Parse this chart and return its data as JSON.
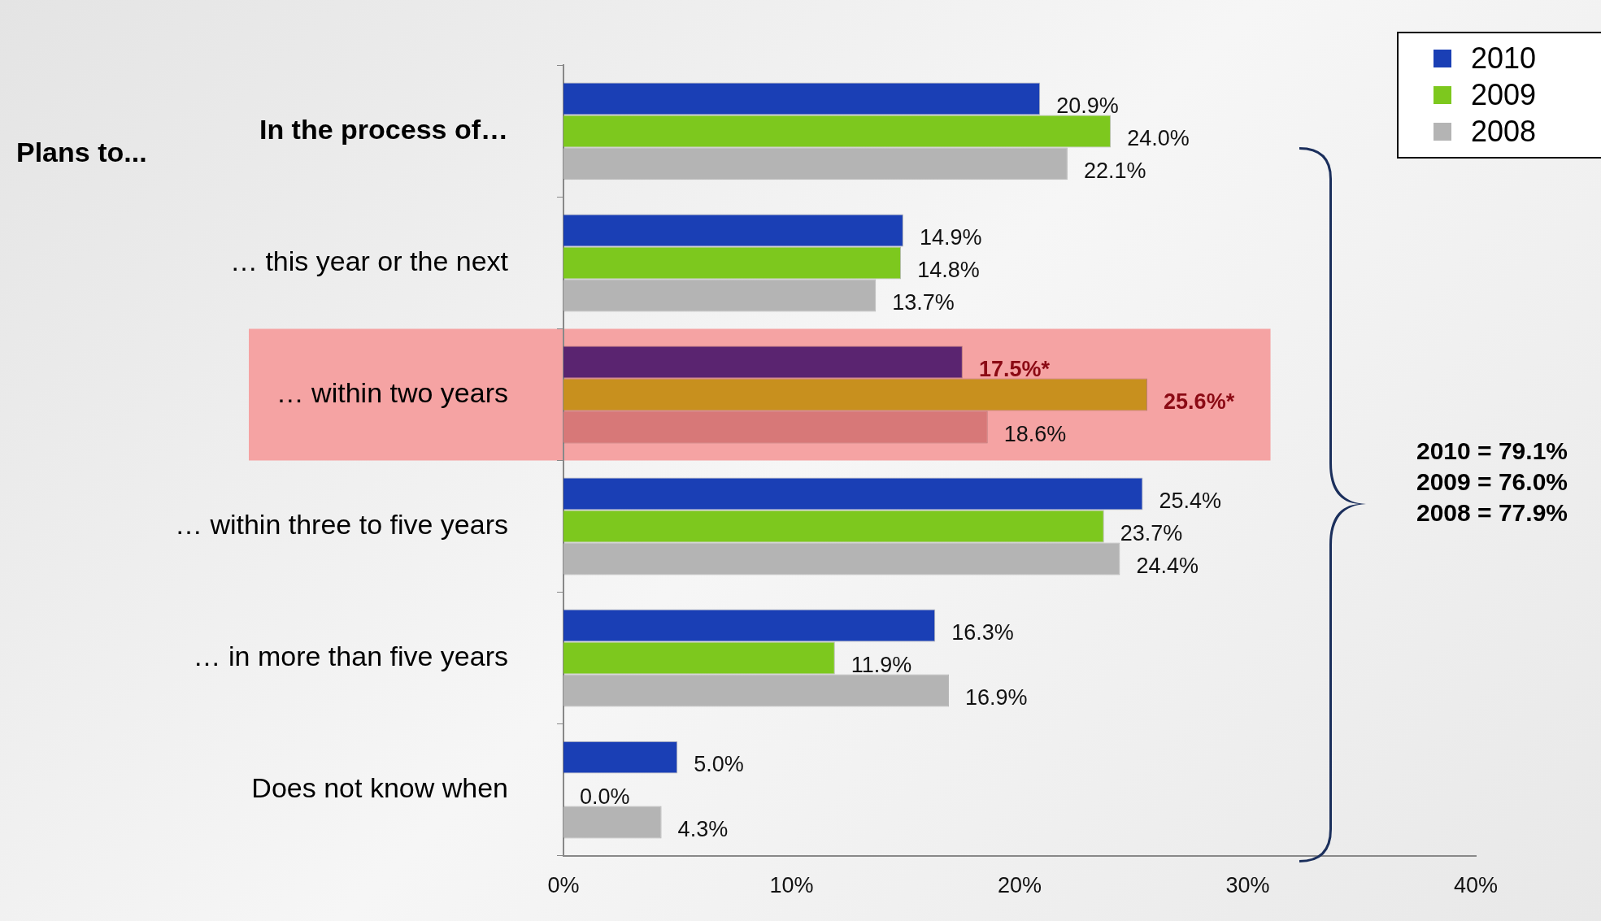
{
  "chart_data": {
    "type": "bar",
    "orientation": "horizontal",
    "categories": [
      "In the process of…",
      "… this year or the next",
      "… within two years",
      "… within three to five years",
      "… in more than five years",
      "Does not know when"
    ],
    "series": [
      {
        "name": "2010",
        "color": "#1a3fb5",
        "colors": [
          "#1a3fb5",
          "#1a3fb5",
          "#5a2470",
          "#1a3fb5",
          "#1a3fb5",
          "#1a3fb5"
        ],
        "values": [
          20.9,
          14.9,
          17.5,
          25.4,
          16.3,
          5.0
        ],
        "value_labels": [
          "20.9%",
          "14.9%",
          "17.5%*",
          "25.4%",
          "16.3%",
          "5.0%"
        ]
      },
      {
        "name": "2009",
        "color": "#7dc81e",
        "colors": [
          "#7dc81e",
          "#7dc81e",
          "#c8901e",
          "#7dc81e",
          "#7dc81e",
          "#7dc81e"
        ],
        "values": [
          24.0,
          14.8,
          25.6,
          23.7,
          11.9,
          0.0
        ],
        "value_labels": [
          "24.0%",
          "14.8%",
          "25.6%*",
          "23.7%",
          "11.9%",
          "0.0%"
        ]
      },
      {
        "name": "2008",
        "color": "#b4b4b4",
        "colors": [
          "#b4b4b4",
          "#b4b4b4",
          "#d77878",
          "#b4b4b4",
          "#b4b4b4",
          "#b4b4b4"
        ],
        "values": [
          22.1,
          13.7,
          18.6,
          24.4,
          16.9,
          4.3
        ],
        "value_labels": [
          "22.1%",
          "13.7%",
          "18.6%",
          "24.4%",
          "16.9%",
          "4.3%"
        ]
      }
    ],
    "xlim": [
      0,
      40
    ],
    "xticks": [
      {
        "value": 0,
        "label": "0%"
      },
      {
        "value": 10,
        "label": "10%"
      },
      {
        "value": 20,
        "label": "20%"
      },
      {
        "value": 30,
        "label": "30%"
      },
      {
        "value": 40,
        "label": "40%"
      }
    ],
    "bands": [
      {
        "axis": "y",
        "from": "… within two years",
        "to": "… within two years",
        "color": "#f5a3a3"
      }
    ],
    "annotations": [
      "Plans to...",
      "2010 = 79.1%",
      "2009 = 76.0%",
      "2008 = 77.9%"
    ],
    "legend": "top right",
    "grid": false
  }
}
